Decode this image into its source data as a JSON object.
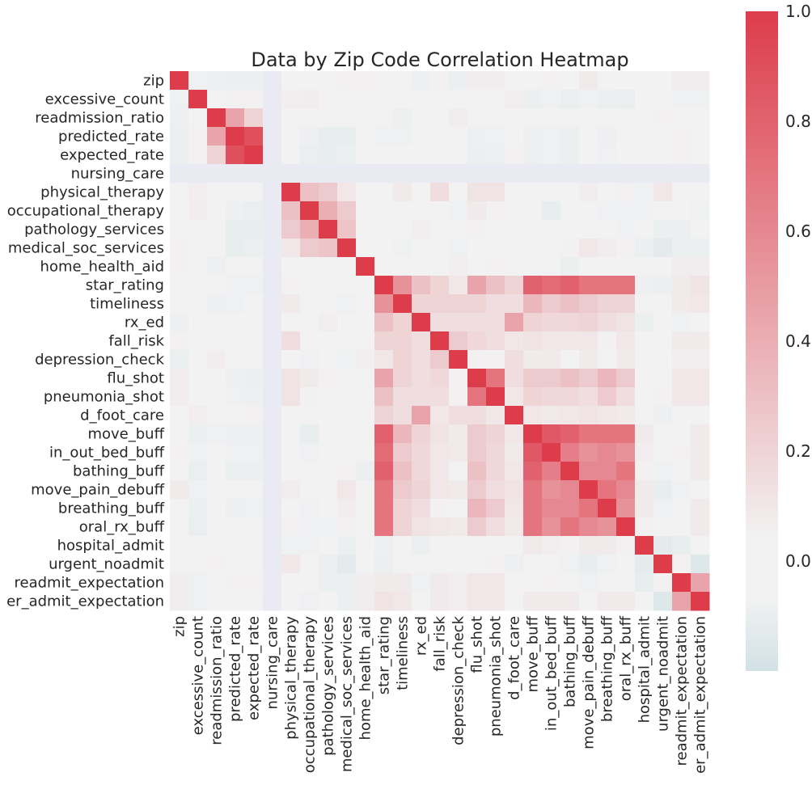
{
  "chart_data": {
    "type": "heatmap",
    "title": "Data by Zip Code Correlation Heatmap",
    "xlabel": "",
    "ylabel": "",
    "variables": [
      "zip",
      "excessive_count",
      "readmission_ratio",
      "predicted_rate",
      "expected_rate",
      "nursing_care",
      "physical_therapy",
      "occupational_therapy",
      "pathology_services",
      "medical_soc_services",
      "home_health_aid",
      "star_rating",
      "timeliness",
      "rx_ed",
      "fall_risk",
      "depression_check",
      "flu_shot",
      "pneumonia_shot",
      "d_foot_care",
      "move_buff",
      "in_out_bed_buff",
      "bathing_buff",
      "move_pain_debuff",
      "breathing_buff",
      "oral_rx_buff",
      "hospital_admit",
      "urgent_noadmit",
      "readmit_expectation",
      "er_admit_expectation"
    ],
    "matrix": [
      [
        1.0,
        -0.02,
        -0.03,
        -0.04,
        -0.04,
        null,
        0.01,
        0.01,
        0.01,
        0.05,
        0.05,
        0.01,
        0.01,
        -0.03,
        0.05,
        -0.04,
        0.07,
        0.07,
        0.0,
        0.01,
        0.05,
        0.0,
        0.08,
        0.01,
        0.0,
        0.0,
        0.0,
        0.07,
        0.07
      ],
      [
        -0.02,
        1.0,
        0.01,
        0.05,
        0.05,
        null,
        0.06,
        0.07,
        0.0,
        0.0,
        0.0,
        0.0,
        0.0,
        0.0,
        0.0,
        0.0,
        0.0,
        0.0,
        0.06,
        -0.04,
        -0.02,
        -0.05,
        -0.02,
        -0.04,
        -0.05,
        0.0,
        0.0,
        -0.02,
        -0.02
      ],
      [
        -0.03,
        0.01,
        1.0,
        0.45,
        0.2,
        null,
        0.0,
        0.0,
        0.0,
        0.0,
        0.0,
        0.0,
        -0.03,
        0.0,
        0.0,
        0.07,
        0.0,
        0.0,
        0.0,
        0.0,
        0.0,
        0.0,
        0.0,
        0.0,
        0.0,
        0.0,
        0.05,
        0.0,
        0.0
      ],
      [
        -0.04,
        0.05,
        0.45,
        1.0,
        0.9,
        null,
        0.0,
        -0.03,
        -0.06,
        -0.06,
        0.0,
        -0.02,
        -0.02,
        0.0,
        0.0,
        0.0,
        -0.03,
        -0.02,
        0.0,
        -0.03,
        -0.02,
        -0.04,
        0.0,
        -0.03,
        0.0,
        0.0,
        0.0,
        0.05,
        0.0
      ],
      [
        -0.04,
        0.05,
        0.2,
        0.9,
        1.0,
        null,
        0.0,
        -0.05,
        -0.06,
        -0.04,
        0.0,
        0.0,
        0.0,
        0.0,
        0.0,
        0.0,
        -0.04,
        -0.03,
        0.05,
        -0.03,
        -0.02,
        -0.04,
        0.0,
        -0.02,
        0.0,
        0.0,
        0.0,
        0.05,
        0.0
      ],
      [
        null,
        null,
        null,
        null,
        null,
        null,
        null,
        null,
        null,
        null,
        null,
        null,
        null,
        null,
        null,
        null,
        null,
        null,
        null,
        null,
        null,
        null,
        null,
        null,
        null,
        null,
        null,
        null,
        null
      ],
      [
        0.01,
        0.06,
        0.0,
        0.0,
        0.0,
        null,
        1.0,
        0.3,
        0.25,
        0.1,
        0.0,
        0.01,
        0.08,
        0.0,
        0.15,
        0.0,
        0.12,
        0.12,
        0.0,
        0.0,
        0.0,
        0.0,
        0.07,
        0.0,
        0.05,
        -0.02,
        0.1,
        0.0,
        0.0
      ],
      [
        0.01,
        0.07,
        0.0,
        -0.03,
        -0.05,
        null,
        0.3,
        1.0,
        0.4,
        0.25,
        0.0,
        0.0,
        0.0,
        0.0,
        0.04,
        -0.02,
        0.08,
        0.05,
        0.0,
        0.0,
        -0.06,
        0.0,
        0.0,
        -0.02,
        -0.02,
        -0.02,
        0.0,
        0.0,
        -0.02
      ],
      [
        0.01,
        0.0,
        0.0,
        -0.06,
        -0.06,
        null,
        0.25,
        0.4,
        1.0,
        0.28,
        0.0,
        0.0,
        0.0,
        0.06,
        0.04,
        0.0,
        0.05,
        0.03,
        0.0,
        0.0,
        0.0,
        0.0,
        0.0,
        0.0,
        -0.02,
        0.0,
        -0.04,
        -0.04,
        0.0
      ],
      [
        0.05,
        0.0,
        0.0,
        -0.06,
        -0.04,
        null,
        0.1,
        0.25,
        0.28,
        1.0,
        0.0,
        0.04,
        -0.02,
        0.0,
        0.0,
        -0.02,
        0.04,
        0.0,
        0.0,
        0.0,
        0.0,
        0.05,
        0.1,
        0.07,
        0.05,
        -0.04,
        -0.08,
        -0.04,
        -0.04
      ],
      [
        0.05,
        0.0,
        -0.03,
        0.0,
        0.0,
        null,
        0.0,
        0.0,
        0.0,
        0.0,
        1.0,
        0.0,
        0.0,
        0.0,
        0.0,
        0.06,
        0.0,
        0.05,
        0.0,
        0.0,
        0.0,
        -0.04,
        0.0,
        0.0,
        0.0,
        0.0,
        0.0,
        0.07,
        0.07
      ],
      [
        0.01,
        0.0,
        0.0,
        -0.02,
        -0.02,
        null,
        0.05,
        0.0,
        0.0,
        0.04,
        0.0,
        1.0,
        0.55,
        0.3,
        0.2,
        0.1,
        0.45,
        0.3,
        0.2,
        0.8,
        0.75,
        0.8,
        0.7,
        0.7,
        0.7,
        -0.03,
        -0.04,
        0.08,
        0.12
      ],
      [
        0.01,
        0.0,
        -0.03,
        -0.02,
        0.0,
        null,
        0.08,
        0.0,
        0.0,
        -0.02,
        0.0,
        0.55,
        1.0,
        0.2,
        0.2,
        0.2,
        0.2,
        0.15,
        0.15,
        0.35,
        0.25,
        0.3,
        0.25,
        0.2,
        0.2,
        0.0,
        0.0,
        0.08,
        0.1
      ],
      [
        -0.03,
        0.0,
        0.0,
        0.0,
        0.0,
        null,
        0.0,
        0.0,
        0.06,
        0.0,
        0.0,
        0.3,
        0.2,
        1.0,
        0.15,
        0.15,
        0.15,
        0.15,
        0.45,
        0.2,
        0.18,
        0.18,
        0.2,
        0.15,
        0.12,
        -0.04,
        0.0,
        -0.02,
        0.0
      ],
      [
        0.05,
        0.0,
        0.0,
        0.0,
        0.0,
        null,
        0.15,
        0.04,
        0.04,
        0.0,
        0.0,
        0.2,
        0.2,
        0.15,
        1.0,
        0.25,
        0.18,
        0.15,
        0.1,
        0.12,
        0.1,
        0.1,
        0.1,
        0.05,
        0.1,
        0.0,
        0.0,
        0.08,
        0.08
      ],
      [
        -0.04,
        0.0,
        0.07,
        0.0,
        0.0,
        null,
        0.0,
        -0.02,
        0.0,
        -0.02,
        0.06,
        0.1,
        0.2,
        0.15,
        0.25,
        1.0,
        0.05,
        0.05,
        0.15,
        0.08,
        0.08,
        0.0,
        0.08,
        0.0,
        0.08,
        0.0,
        0.0,
        0.06,
        0.06
      ],
      [
        0.07,
        0.0,
        0.0,
        -0.03,
        -0.04,
        null,
        0.12,
        0.08,
        0.05,
        0.04,
        0.0,
        0.45,
        0.2,
        0.15,
        0.18,
        0.05,
        1.0,
        0.7,
        0.15,
        0.25,
        0.25,
        0.3,
        0.25,
        0.35,
        0.25,
        0.0,
        0.0,
        0.1,
        0.1
      ],
      [
        0.07,
        0.0,
        0.0,
        -0.02,
        -0.03,
        null,
        0.12,
        0.05,
        0.03,
        0.0,
        0.0,
        0.3,
        0.15,
        0.15,
        0.15,
        0.05,
        0.7,
        1.0,
        0.1,
        0.2,
        0.18,
        0.18,
        0.15,
        0.25,
        0.15,
        0.0,
        0.05,
        0.1,
        0.1
      ],
      [
        0.0,
        0.06,
        0.0,
        0.0,
        0.05,
        null,
        0.0,
        0.0,
        0.0,
        0.0,
        0.0,
        0.2,
        0.15,
        0.45,
        0.1,
        0.15,
        0.15,
        0.1,
        1.0,
        0.1,
        0.08,
        0.1,
        0.12,
        0.1,
        0.08,
        0.0,
        -0.03,
        0.0,
        0.0
      ],
      [
        0.01,
        -0.04,
        -0.02,
        -0.03,
        -0.03,
        null,
        0.0,
        -0.06,
        0.0,
        0.0,
        0.0,
        0.8,
        0.35,
        0.2,
        0.12,
        0.08,
        0.25,
        0.2,
        0.1,
        1.0,
        0.85,
        0.8,
        0.7,
        0.7,
        0.7,
        0.08,
        0.0,
        0.0,
        0.08
      ],
      [
        0.05,
        -0.02,
        0.0,
        -0.02,
        -0.02,
        null,
        0.0,
        -0.02,
        0.0,
        0.0,
        0.0,
        0.75,
        0.25,
        0.18,
        0.1,
        0.08,
        0.25,
        0.18,
        0.08,
        0.85,
        1.0,
        0.65,
        0.55,
        0.6,
        0.55,
        0.06,
        0.0,
        0.05,
        0.08
      ],
      [
        0.0,
        -0.05,
        0.0,
        -0.04,
        -0.04,
        null,
        0.0,
        0.0,
        0.0,
        0.05,
        -0.04,
        0.8,
        0.3,
        0.18,
        0.1,
        0.0,
        0.3,
        0.18,
        0.1,
        0.8,
        0.65,
        1.0,
        0.6,
        0.6,
        0.7,
        0.05,
        -0.02,
        0.0,
        0.08
      ],
      [
        0.08,
        -0.02,
        0.0,
        0.0,
        0.0,
        null,
        0.07,
        0.0,
        0.0,
        0.1,
        0.0,
        0.7,
        0.25,
        0.2,
        0.1,
        0.08,
        0.25,
        0.15,
        0.12,
        0.7,
        0.55,
        0.6,
        1.0,
        0.7,
        0.6,
        0.08,
        -0.06,
        -0.02,
        0.0
      ],
      [
        0.01,
        -0.04,
        0.0,
        -0.03,
        -0.02,
        null,
        0.0,
        -0.02,
        0.0,
        0.07,
        0.0,
        0.7,
        0.2,
        0.15,
        0.05,
        0.0,
        0.35,
        0.25,
        0.1,
        0.7,
        0.6,
        0.6,
        0.7,
        1.0,
        0.55,
        0.08,
        -0.02,
        0.0,
        0.08
      ],
      [
        0.0,
        -0.05,
        0.0,
        0.0,
        0.0,
        null,
        0.05,
        -0.02,
        -0.02,
        0.05,
        0.0,
        0.7,
        0.2,
        0.12,
        0.1,
        0.08,
        0.25,
        0.15,
        0.08,
        0.7,
        0.55,
        0.7,
        0.6,
        0.55,
        1.0,
        0.05,
        0.0,
        0.0,
        0.08
      ],
      [
        0.0,
        0.0,
        0.0,
        0.0,
        0.0,
        null,
        -0.02,
        -0.02,
        0.0,
        -0.04,
        0.0,
        -0.03,
        0.0,
        -0.04,
        0.0,
        0.0,
        0.0,
        0.0,
        0.0,
        0.08,
        0.06,
        0.05,
        0.08,
        0.08,
        0.05,
        1.0,
        -0.08,
        -0.06,
        0.0
      ],
      [
        0.0,
        0.0,
        0.05,
        0.0,
        0.0,
        null,
        0.1,
        0.0,
        -0.04,
        -0.08,
        0.0,
        -0.04,
        0.0,
        0.0,
        0.0,
        0.0,
        0.0,
        0.05,
        -0.03,
        0.0,
        0.0,
        -0.02,
        -0.06,
        -0.02,
        0.0,
        -0.08,
        1.0,
        0.05,
        -0.12
      ],
      [
        0.07,
        -0.02,
        0.0,
        0.05,
        0.05,
        null,
        0.0,
        0.0,
        -0.04,
        -0.04,
        0.07,
        0.08,
        0.08,
        -0.02,
        0.08,
        0.06,
        0.1,
        0.1,
        0.0,
        0.0,
        0.05,
        0.0,
        -0.02,
        0.0,
        0.0,
        -0.06,
        0.05,
        1.0,
        0.45
      ],
      [
        0.07,
        -0.02,
        0.0,
        0.0,
        0.0,
        null,
        0.0,
        -0.02,
        0.0,
        -0.04,
        0.07,
        0.12,
        0.1,
        0.0,
        0.08,
        0.06,
        0.1,
        0.1,
        0.0,
        0.08,
        0.08,
        0.08,
        0.0,
        0.08,
        0.08,
        0.0,
        -0.12,
        0.45,
        1.0
      ]
    ],
    "colorbar": {
      "vmin": -0.2,
      "vmax": 1.0,
      "center": 0.0,
      "ticks": [
        "0.0",
        "0.2",
        "0.4",
        "0.6",
        "0.8",
        "1.0"
      ],
      "tick_values": [
        0.0,
        0.2,
        0.4,
        0.6,
        0.8,
        1.0
      ]
    },
    "colors": {
      "positive_max": "#dd3c4b",
      "center": "#f2f2f2",
      "negative_min": "#d1e1e6",
      "missing": "#eaeaf2"
    },
    "grid": false,
    "legend": "right"
  }
}
